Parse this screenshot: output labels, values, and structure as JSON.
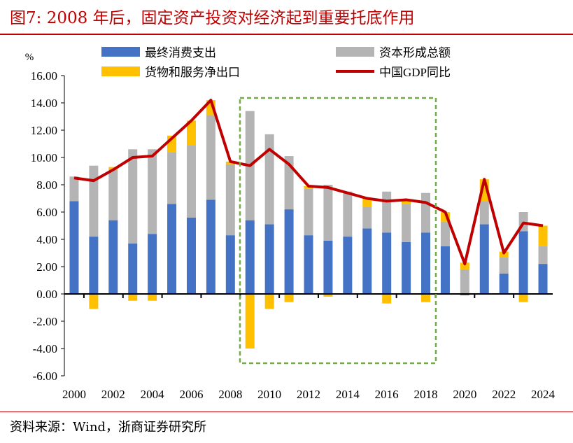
{
  "title": "图7:  2008 年后，固定资产投资对经济起到重要托底作用",
  "source": "资料来源：Wind，浙商证券研究所",
  "chart_data": {
    "type": "bar",
    "ylabel": "%",
    "ylim": [
      -6,
      16
    ],
    "yticks": [
      "-6.00",
      "-4.00",
      "-2.00",
      "0.00",
      "2.00",
      "4.00",
      "6.00",
      "8.00",
      "10.00",
      "12.00",
      "14.00",
      "16.00"
    ],
    "categories": [
      "2000",
      "2001",
      "2002",
      "2003",
      "2004",
      "2005",
      "2006",
      "2007",
      "2008",
      "2009",
      "2010",
      "2011",
      "2012",
      "2013",
      "2014",
      "2015",
      "2016",
      "2017",
      "2018",
      "2019",
      "2020",
      "2021",
      "2022",
      "2023",
      "2024"
    ],
    "xticklabels": [
      "2000",
      "2002",
      "2004",
      "2006",
      "2008",
      "2010",
      "2012",
      "2014",
      "2016",
      "2018",
      "2020",
      "2022",
      "2024"
    ],
    "series": [
      {
        "name": "最终消费支出",
        "type": "bar",
        "color": "#4472c4",
        "values": [
          6.8,
          4.2,
          5.4,
          3.7,
          4.4,
          6.6,
          5.6,
          6.9,
          4.3,
          5.4,
          5.1,
          6.2,
          4.3,
          3.9,
          4.2,
          4.8,
          4.5,
          3.8,
          4.5,
          3.5,
          -0.1,
          5.1,
          1.5,
          4.6,
          2.2
        ]
      },
      {
        "name": "资本形成总额",
        "type": "bar",
        "color": "#b4b4b4",
        "values": [
          1.8,
          5.2,
          3.7,
          6.9,
          6.2,
          3.8,
          5.3,
          6.2,
          5.2,
          8.0,
          6.6,
          3.9,
          3.4,
          4.1,
          3.3,
          1.6,
          3.0,
          2.8,
          2.9,
          1.8,
          1.8,
          1.7,
          1.2,
          1.4,
          1.3
        ]
      },
      {
        "name": "货物和服务净出口",
        "type": "bar",
        "color": "#ffc000",
        "values": [
          0.0,
          -1.1,
          0.2,
          -0.5,
          -0.5,
          1.2,
          1.8,
          1.1,
          0.2,
          -4.0,
          -1.1,
          -0.6,
          0.2,
          -0.2,
          0.0,
          0.6,
          -0.7,
          0.3,
          -0.6,
          0.7,
          0.5,
          1.6,
          0.4,
          -0.6,
          1.5
        ]
      },
      {
        "name": "中国GDP同比",
        "type": "line",
        "color": "#c00000",
        "values": [
          8.5,
          8.3,
          9.1,
          10.0,
          10.1,
          11.4,
          12.7,
          14.2,
          9.7,
          9.4,
          10.6,
          9.5,
          7.9,
          7.8,
          7.4,
          7.0,
          6.8,
          6.9,
          6.7,
          6.0,
          2.2,
          8.4,
          3.0,
          5.2,
          5.0
        ]
      }
    ],
    "annotation": "dashed box highlighting 2009-2018",
    "legend": "top"
  }
}
